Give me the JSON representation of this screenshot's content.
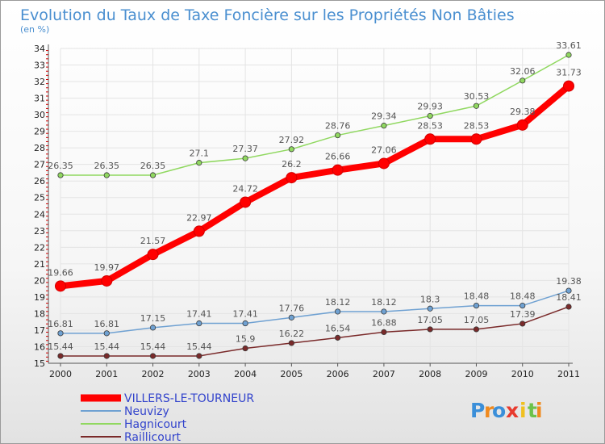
{
  "chart_data": {
    "type": "line",
    "title": "Evolution du Taux de Taxe Foncière sur les Propriétés Non Bâties",
    "ylabel": "(en %)",
    "xlabel": "",
    "ylim": [
      15,
      34
    ],
    "yticks": [
      15,
      16,
      17,
      18,
      19,
      20,
      21,
      22,
      23,
      24,
      25,
      26,
      27,
      28,
      29,
      30,
      31,
      32,
      33,
      34
    ],
    "categories": [
      "2000",
      "2001",
      "2002",
      "2003",
      "2004",
      "2005",
      "2006",
      "2007",
      "2008",
      "2009",
      "2010",
      "2011"
    ],
    "grid": true,
    "legend_position": "bottom-left",
    "series": [
      {
        "name": "VILLERS-LE-TOURNEUR",
        "color": "#ff0000",
        "values": [
          19.66,
          19.97,
          21.57,
          22.97,
          24.72,
          26.2,
          26.66,
          27.06,
          28.53,
          28.53,
          29.38,
          31.73
        ],
        "labels": [
          "19.66",
          "19.97",
          "21.57",
          "22.97",
          "24.72",
          "26.2",
          "26.66",
          "27.06",
          "28.53",
          "28.53",
          "29.38",
          "31.73"
        ]
      },
      {
        "name": "Neuvizy",
        "color": "#6fa1d2",
        "values": [
          16.81,
          16.81,
          17.15,
          17.41,
          17.41,
          17.76,
          18.12,
          18.12,
          18.3,
          18.48,
          18.48,
          19.38
        ],
        "labels": [
          "16.81",
          "16.81",
          "17.15",
          "17.41",
          "17.41",
          "17.76",
          "18.12",
          "18.12",
          "18.3",
          "18.48",
          "18.48",
          "19.38"
        ]
      },
      {
        "name": "Hagnicourt",
        "color": "#90d860",
        "values": [
          26.35,
          26.35,
          26.35,
          27.1,
          27.37,
          27.92,
          28.76,
          29.34,
          29.93,
          30.53,
          32.06,
          33.61
        ],
        "labels": [
          "26.35",
          "26.35",
          "26.35",
          "27.1",
          "27.37",
          "27.92",
          "28.76",
          "29.34",
          "29.93",
          "30.53",
          "32.06",
          "33.61"
        ]
      },
      {
        "name": "Raillicourt",
        "color": "#7a2a2a",
        "values": [
          15.44,
          15.44,
          15.44,
          15.44,
          15.9,
          16.22,
          16.54,
          16.88,
          17.05,
          17.05,
          17.39,
          18.41
        ],
        "labels": [
          "15.44",
          "15.44",
          "15.44",
          "15.44",
          "15.9",
          "16.22",
          "16.54",
          "16.88",
          "17.05",
          "17.05",
          "17.39",
          "18.41"
        ]
      }
    ]
  },
  "brand": {
    "letters": [
      "P",
      "r",
      "o",
      "x",
      "i",
      "t",
      "i"
    ],
    "colors": [
      "#3b8fd9",
      "#f08a1e",
      "#3b8fd9",
      "#e83a2e",
      "#f0c020",
      "#6cc24a",
      "#f08a1e"
    ]
  },
  "colors": {
    "title": "#4a8fd0",
    "legend_text": "#3344cc",
    "axis_text": "#222222",
    "tick_red": "#cc0000"
  }
}
